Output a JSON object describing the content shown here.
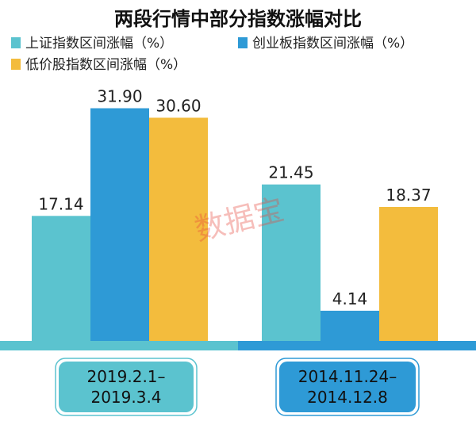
{
  "chart_data": {
    "type": "bar",
    "title": "两段行情中部分指数涨幅对比",
    "categories": [
      "2019.2.1–\n2019.3.4",
      "2014.11.24–\n2014.12.8"
    ],
    "series": [
      {
        "name": "上证指数区间涨幅（%）",
        "values": [
          17.14,
          21.45
        ],
        "color": "#5bc3cf"
      },
      {
        "name": "创业板指数区间涨幅（%）",
        "values": [
          31.9,
          4.14
        ],
        "color": "#2e9ad6"
      },
      {
        "name": "低价股指数区间涨幅（%）",
        "values": [
          30.6,
          18.37
        ],
        "color": "#f3bc3d"
      }
    ],
    "ylim": [
      0,
      35
    ],
    "legend_position": "top",
    "grid": false,
    "group_label_box_colors": [
      "#5bc3cf",
      "#2e9ad6"
    ],
    "watermark": "数据宝"
  }
}
